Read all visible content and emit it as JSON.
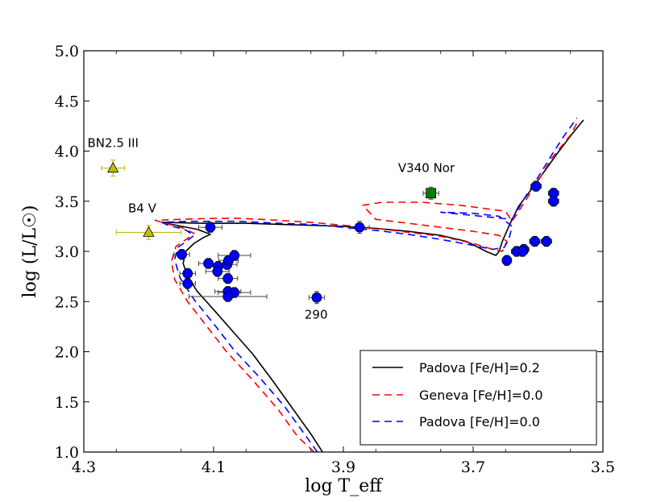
{
  "chart_data": {
    "type": "scatter",
    "xlabel": "log T_eff",
    "ylabel": "log (L/L☉)",
    "xlim": [
      4.3,
      3.5
    ],
    "ylim": [
      1.0,
      5.0
    ],
    "x_reversed": true,
    "x_ticks": [
      "4.3",
      "4.1",
      "3.9",
      "3.7",
      "3.5"
    ],
    "x_tick_values": [
      4.3,
      4.1,
      3.9,
      3.7,
      3.5
    ],
    "y_ticks": [
      "1.0",
      "1.5",
      "2.0",
      "2.5",
      "3.0",
      "3.5",
      "4.0",
      "4.5",
      "5.0"
    ],
    "y_tick_values": [
      1.0,
      1.5,
      2.0,
      2.5,
      3.0,
      3.5,
      4.0,
      4.5,
      5.0
    ],
    "legend_position": "lower-right",
    "colors": {
      "padova_02": "#000000",
      "geneva_00": "#ff0000",
      "padova_00": "#0000ff",
      "cluster_points": "#0000ff",
      "b_stars": "#bfbf00",
      "v340": "#008000"
    },
    "series": [
      {
        "name": "Padova [Fe/H]=0.2",
        "style": "solid",
        "x": [
          3.932,
          3.95,
          3.98,
          4.01,
          4.04,
          4.07,
          4.1,
          4.125,
          4.14,
          4.147,
          4.143,
          4.13,
          4.115,
          4.105,
          4.125,
          4.165,
          4.18,
          4.12,
          4.05,
          4.0,
          3.95,
          3.9,
          3.85,
          3.8,
          3.75,
          3.71,
          3.68,
          3.665,
          3.66,
          3.655,
          3.645,
          3.63,
          3.61,
          3.59,
          3.57,
          3.55,
          3.53
        ],
        "y": [
          1.0,
          1.18,
          1.45,
          1.72,
          1.98,
          2.2,
          2.42,
          2.6,
          2.75,
          2.88,
          3.0,
          3.08,
          3.14,
          3.17,
          3.22,
          3.27,
          3.29,
          3.28,
          3.28,
          3.27,
          3.26,
          3.25,
          3.23,
          3.2,
          3.16,
          3.1,
          3.0,
          2.96,
          3.0,
          3.1,
          3.25,
          3.45,
          3.62,
          3.8,
          3.98,
          4.15,
          4.31
        ]
      },
      {
        "name": "Geneva [Fe/H]=0.0",
        "style": "dashed",
        "x": [
          3.945,
          3.97,
          4.0,
          4.04,
          4.08,
          4.11,
          4.14,
          4.16,
          4.165,
          4.158,
          4.14,
          4.13,
          4.15,
          4.175,
          4.19,
          4.15,
          4.1,
          4.06,
          4.0,
          3.95,
          3.9,
          3.85,
          3.8,
          3.75,
          3.7,
          3.67,
          3.655,
          3.648,
          3.66,
          3.7,
          3.75,
          3.8,
          3.85,
          3.87,
          3.84,
          3.78,
          3.72,
          3.65,
          3.64,
          3.62,
          3.6,
          3.58,
          3.55,
          3.54
        ],
        "y": [
          1.0,
          1.15,
          1.42,
          1.72,
          2.0,
          2.25,
          2.5,
          2.72,
          2.9,
          3.05,
          3.13,
          3.18,
          3.24,
          3.28,
          3.31,
          3.32,
          3.33,
          3.33,
          3.31,
          3.29,
          3.26,
          3.23,
          3.19,
          3.15,
          3.08,
          3.02,
          3.0,
          3.1,
          3.16,
          3.2,
          3.24,
          3.28,
          3.32,
          3.46,
          3.49,
          3.49,
          3.46,
          3.4,
          3.3,
          3.5,
          3.7,
          3.92,
          4.16,
          4.28
        ]
      },
      {
        "name": "Padova [Fe/H]=0.0",
        "style": "dashed",
        "x": [
          3.94,
          3.96,
          3.99,
          4.03,
          4.07,
          4.1,
          4.13,
          4.152,
          4.16,
          4.155,
          4.14,
          4.13,
          4.145,
          4.17,
          4.18,
          4.14,
          4.1,
          4.06,
          4.0,
          3.95,
          3.9,
          3.85,
          3.8,
          3.75,
          3.7,
          3.67,
          3.652,
          3.645,
          3.64,
          3.66,
          3.7,
          3.75,
          3.64,
          3.62,
          3.6,
          3.58,
          3.56,
          3.54
        ],
        "y": [
          1.0,
          1.18,
          1.45,
          1.75,
          2.03,
          2.28,
          2.52,
          2.74,
          2.92,
          3.04,
          3.11,
          3.16,
          3.22,
          3.26,
          3.29,
          3.3,
          3.3,
          3.3,
          3.28,
          3.27,
          3.24,
          3.21,
          3.17,
          3.12,
          3.06,
          3.02,
          3.04,
          3.12,
          3.25,
          3.35,
          3.38,
          3.39,
          3.32,
          3.54,
          3.74,
          3.95,
          4.15,
          4.33
        ]
      }
    ],
    "points": [
      {
        "x": 4.105,
        "y": 3.24,
        "xerr": 0.018,
        "yerr": 0.05
      },
      {
        "x": 4.149,
        "y": 2.97,
        "xerr": 0.012,
        "yerr": 0.05
      },
      {
        "x": 4.14,
        "y": 2.78,
        "xerr": 0.012,
        "yerr": 0.05
      },
      {
        "x": 4.14,
        "y": 2.68,
        "xerr": 0.012,
        "yerr": 0.05
      },
      {
        "x": 4.108,
        "y": 2.88,
        "xerr": 0.015,
        "yerr": 0.05
      },
      {
        "x": 4.093,
        "y": 2.85,
        "xerr": 0.015,
        "yerr": 0.05
      },
      {
        "x": 4.094,
        "y": 2.8,
        "xerr": 0.018,
        "yerr": 0.05
      },
      {
        "x": 4.079,
        "y": 2.87,
        "xerr": 0.015,
        "yerr": 0.05
      },
      {
        "x": 4.077,
        "y": 2.91,
        "xerr": 0.015,
        "yerr": 0.05
      },
      {
        "x": 4.068,
        "y": 2.96,
        "xerr": 0.025,
        "yerr": 0.05
      },
      {
        "x": 4.078,
        "y": 2.73,
        "xerr": 0.015,
        "yerr": 0.05
      },
      {
        "x": 4.078,
        "y": 2.6,
        "xerr": 0.02,
        "yerr": 0.05
      },
      {
        "x": 4.068,
        "y": 2.59,
        "xerr": 0.025,
        "yerr": 0.05
      },
      {
        "x": 4.078,
        "y": 2.55,
        "xerr": 0.06,
        "yerr": 0.05
      },
      {
        "x": 3.941,
        "y": 2.54,
        "xerr": 0.012,
        "yerr": 0.06
      },
      {
        "x": 3.875,
        "y": 3.24,
        "xerr": 0.015,
        "yerr": 0.06
      },
      {
        "x": 3.648,
        "y": 2.91,
        "xerr": 0.005,
        "yerr": 0.05
      },
      {
        "x": 3.633,
        "y": 3.0,
        "xerr": 0.008,
        "yerr": 0.05
      },
      {
        "x": 3.622,
        "y": 3.02,
        "xerr": 0.008,
        "yerr": 0.05
      },
      {
        "x": 3.624,
        "y": 3.0,
        "xerr": 0.008,
        "yerr": 0.05
      },
      {
        "x": 3.605,
        "y": 3.1,
        "xerr": 0.008,
        "yerr": 0.05
      },
      {
        "x": 3.587,
        "y": 3.1,
        "xerr": 0.008,
        "yerr": 0.05
      },
      {
        "x": 3.603,
        "y": 3.65,
        "xerr": 0.008,
        "yerr": 0.05
      },
      {
        "x": 3.576,
        "y": 3.58,
        "xerr": 0.008,
        "yerr": 0.05
      },
      {
        "x": 3.576,
        "y": 3.5,
        "xerr": 0.008,
        "yerr": 0.05
      }
    ],
    "b_stars": [
      {
        "x": 4.255,
        "y": 3.83,
        "xerr": 0.018,
        "yerr": 0.08
      },
      {
        "x": 4.2,
        "y": 3.19,
        "xerr": 0.05,
        "yerr": 0.07
      }
    ],
    "v340_point": {
      "x": 3.765,
      "y": 3.58,
      "xerr": 0.012,
      "yerr": 0.06
    },
    "annotations": [
      {
        "text": "BN2.5 III",
        "x": 4.255,
        "y": 4.04
      },
      {
        "text": "B4 V",
        "x": 4.21,
        "y": 3.39
      },
      {
        "text": "V340 Nor",
        "x": 3.772,
        "y": 3.79
      },
      {
        "text": "290",
        "x": 3.942,
        "y": 2.33
      }
    ]
  }
}
